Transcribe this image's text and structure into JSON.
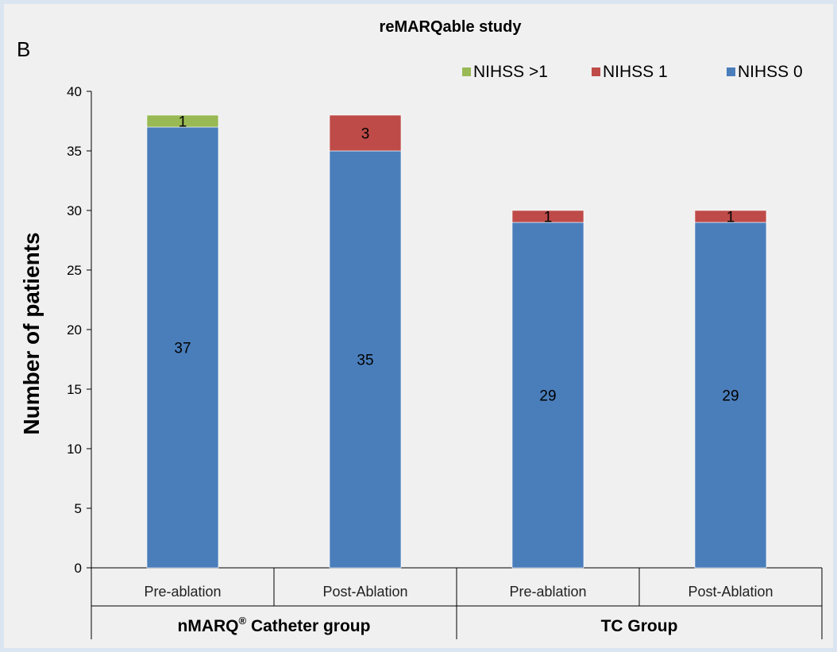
{
  "panel_label": "B",
  "chart_data": {
    "type": "bar",
    "stacked": true,
    "title": "reMARQable study",
    "ylabel": "Number of patients",
    "xlabel": "",
    "ylim": [
      0,
      40
    ],
    "yticks": [
      0,
      5,
      10,
      15,
      20,
      25,
      30,
      35,
      40
    ],
    "grid": false,
    "legend_position": "top-right",
    "categories": [
      "Pre-ablation",
      "Post-Ablation",
      "Pre-ablation",
      "Post-Ablation"
    ],
    "groups": [
      {
        "label": "nMARQ",
        "superscript": "®",
        "suffix": " Catheter group",
        "categories": [
          0,
          1
        ]
      },
      {
        "label": "TC Group",
        "superscript": "",
        "suffix": "",
        "categories": [
          2,
          3
        ]
      }
    ],
    "series": [
      {
        "name": "NIHSS 0",
        "color": "#4a7ebb",
        "values": [
          37,
          35,
          29,
          29
        ],
        "labels": [
          "37",
          "35",
          "29",
          "29"
        ]
      },
      {
        "name": "NIHSS 1",
        "color": "#be4b48",
        "values": [
          0,
          3,
          1,
          1
        ],
        "labels": [
          "",
          "3",
          "1",
          "1"
        ]
      },
      {
        "name": "NIHSS >1",
        "color": "#98b954",
        "values": [
          1,
          0,
          0,
          0
        ],
        "labels": [
          "1",
          "",
          "",
          ""
        ]
      }
    ],
    "legend_order": [
      "NIHSS >1",
      "NIHSS 1",
      "NIHSS 0"
    ]
  }
}
